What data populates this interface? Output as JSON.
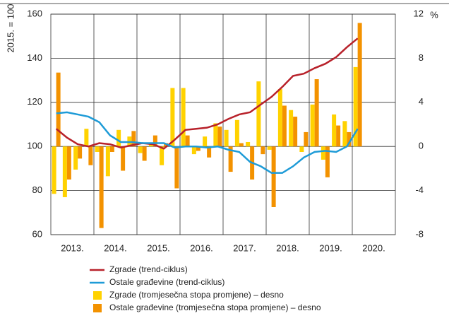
{
  "chart_data": {
    "type": "bar-line",
    "ylabel": "2015. = 100",
    "y2label": "%",
    "xlim": [
      2013,
      2021
    ],
    "xticks": [
      {
        "value": 2013.5,
        "label": "2013."
      },
      {
        "value": 2014.5,
        "label": "2014."
      },
      {
        "value": 2015.5,
        "label": "2015."
      },
      {
        "value": 2016.5,
        "label": "2016."
      },
      {
        "value": 2017.5,
        "label": "2017."
      },
      {
        "value": 2018.5,
        "label": "2018."
      },
      {
        "value": 2019.5,
        "label": "2019."
      },
      {
        "value": 2020.5,
        "label": "2020."
      }
    ],
    "xgrid": [
      2014,
      2015,
      2016,
      2017,
      2018,
      2019,
      2020
    ],
    "ylim": [
      60,
      160
    ],
    "yticks": [
      60,
      80,
      100,
      120,
      140,
      160
    ],
    "y2lim": [
      -8,
      12
    ],
    "y2ticks": [
      -8,
      -4,
      0,
      4,
      8,
      12
    ],
    "grid": true,
    "x": [
      2013.125,
      2013.375,
      2013.625,
      2013.875,
      2014.125,
      2014.375,
      2014.625,
      2014.875,
      2015.125,
      2015.375,
      2015.625,
      2015.875,
      2016.125,
      2016.375,
      2016.625,
      2016.875,
      2017.125,
      2017.375,
      2017.625,
      2017.875,
      2018.125,
      2018.375,
      2018.625,
      2018.875,
      2019.125,
      2019.375,
      2019.625,
      2019.875,
      2020.125
    ],
    "series": [
      {
        "name": "Zgrade (trend-ciklus)",
        "type": "line",
        "color": "#b8212a",
        "values": [
          108,
          104,
          101,
          100,
          101.5,
          101,
          99.5,
          100.5,
          101.5,
          101,
          99,
          103,
          107.5,
          108,
          108.5,
          110,
          112.5,
          114.5,
          115.5,
          119,
          122.5,
          127,
          132,
          133,
          135.5,
          137.5,
          140.5,
          145,
          149
        ]
      },
      {
        "name": "Ostale građevine (trend-ciklus)",
        "type": "line",
        "color": "#1e9bd7",
        "values": [
          115,
          115.5,
          114.5,
          113.5,
          111,
          105,
          102,
          102,
          101.5,
          101.5,
          101.5,
          99.5,
          100,
          100,
          99.5,
          100,
          98.5,
          97.5,
          93,
          91,
          88,
          88,
          91,
          95,
          97.5,
          98,
          97.5,
          100,
          108
        ]
      },
      {
        "name": "Zgrade (tromjesečna stopa promjene) – desno",
        "type": "bar",
        "axis": "y2",
        "color": "#ffd200",
        "values": [
          -4.3,
          -4.6,
          -2.1,
          1.6,
          -0.5,
          -2.7,
          1.5,
          0.9,
          -0.6,
          0.2,
          -1.7,
          5.3,
          5.3,
          -0.7,
          0.9,
          2.1,
          1.5,
          2.4,
          0.4,
          5.9,
          -0.3,
          5.2,
          3.3,
          -0.5,
          3.8,
          -1.2,
          2.9,
          2.3,
          7.2
        ]
      },
      {
        "name": "Ostale građevine (tromjesečna stopa promjene) – desno",
        "type": "bar",
        "axis": "y2",
        "color": "#f39200",
        "values": [
          6.7,
          -3.0,
          -1.1,
          -1.7,
          -7.4,
          -0.5,
          -2.2,
          1.4,
          -1.3,
          1.0,
          0.3,
          -3.8,
          1.0,
          -0.4,
          -1.0,
          1.8,
          -2.3,
          0.3,
          -3.0,
          -0.7,
          -5.5,
          3.7,
          2.7,
          1.3,
          6.1,
          -2.8,
          1.9,
          1.3,
          11.2
        ]
      }
    ]
  }
}
